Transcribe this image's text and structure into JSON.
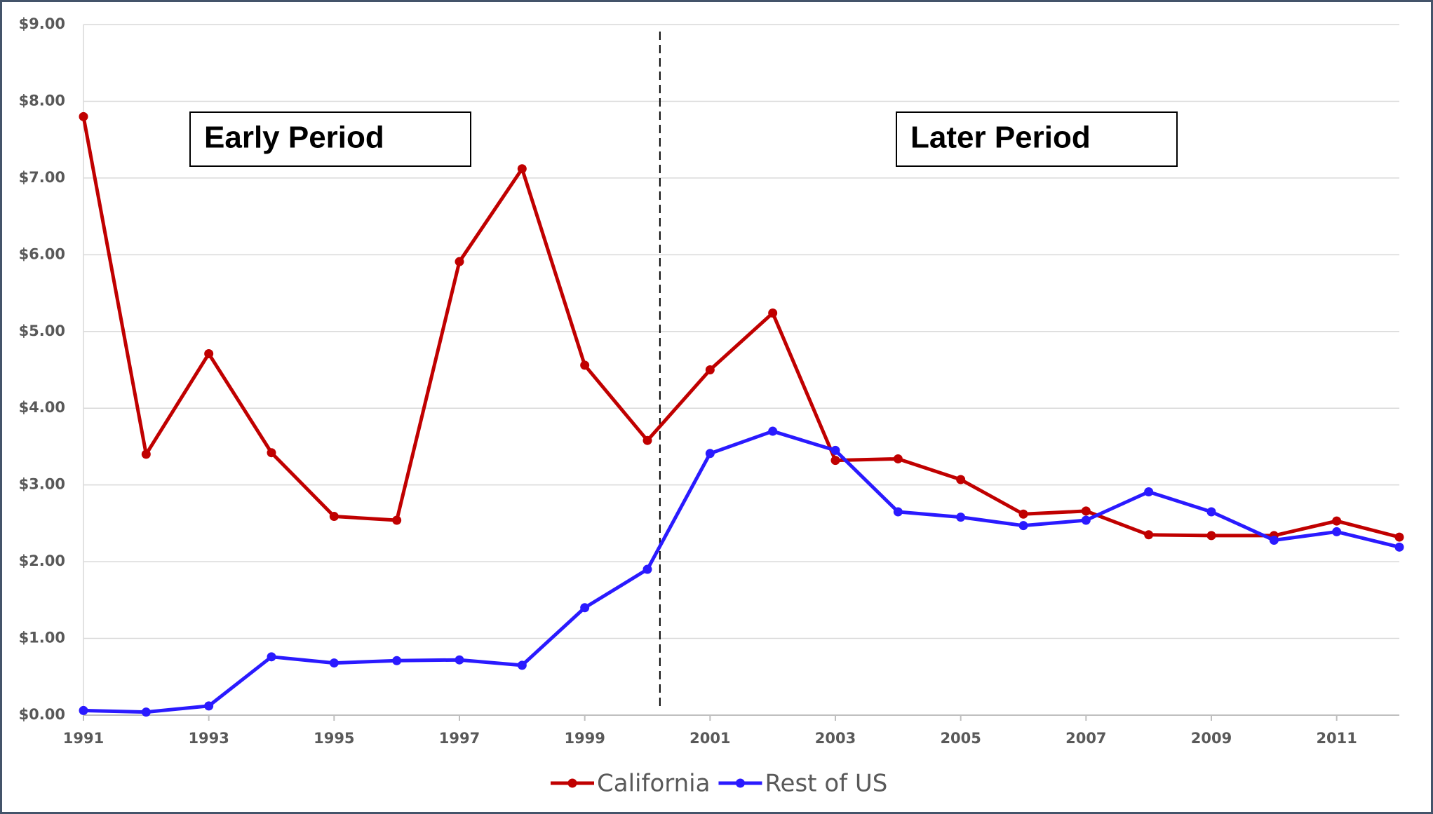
{
  "chart_data": {
    "type": "line",
    "x": [
      1991,
      1992,
      1993,
      1994,
      1995,
      1996,
      1997,
      1998,
      1999,
      2000,
      2001,
      2002,
      2003,
      2004,
      2005,
      2006,
      2007,
      2008,
      2009,
      2010,
      2011,
      2012
    ],
    "series": [
      {
        "name": "California",
        "color": "#c00000",
        "values": [
          7.8,
          3.4,
          4.71,
          3.42,
          2.59,
          2.54,
          5.91,
          7.12,
          4.56,
          3.58,
          4.5,
          5.24,
          3.32,
          3.34,
          3.07,
          2.62,
          2.66,
          2.35,
          2.34,
          2.34,
          2.53,
          2.32
        ]
      },
      {
        "name": "Rest of US",
        "color": "#2a1aff",
        "values": [
          0.06,
          0.04,
          0.12,
          0.76,
          0.68,
          0.71,
          0.72,
          0.65,
          1.4,
          1.9,
          3.41,
          3.7,
          3.45,
          2.65,
          2.58,
          2.47,
          2.54,
          2.91,
          2.65,
          2.28,
          2.39,
          2.19
        ]
      }
    ],
    "xlim": [
      1991,
      2012
    ],
    "xticks": [
      1991,
      1993,
      1995,
      1997,
      1999,
      2001,
      2003,
      2005,
      2007,
      2009,
      2011
    ],
    "ylim": [
      0,
      9
    ],
    "yticks": [
      {
        "value": 0,
        "label": "$0.00"
      },
      {
        "value": 1,
        "label": "$1.00"
      },
      {
        "value": 2,
        "label": "$2.00"
      },
      {
        "value": 3,
        "label": "$3.00"
      },
      {
        "value": 4,
        "label": "$4.00"
      },
      {
        "value": 5,
        "label": "$5.00"
      },
      {
        "value": 6,
        "label": "$6.00"
      },
      {
        "value": 7,
        "label": "$7.00"
      },
      {
        "value": 8,
        "label": "$8.00"
      },
      {
        "value": 9,
        "label": "$9.00"
      }
    ],
    "grid": true,
    "legend": "bottom",
    "divider_x": 2000.2,
    "annotations": [
      "Early Period",
      "Later Period"
    ]
  }
}
